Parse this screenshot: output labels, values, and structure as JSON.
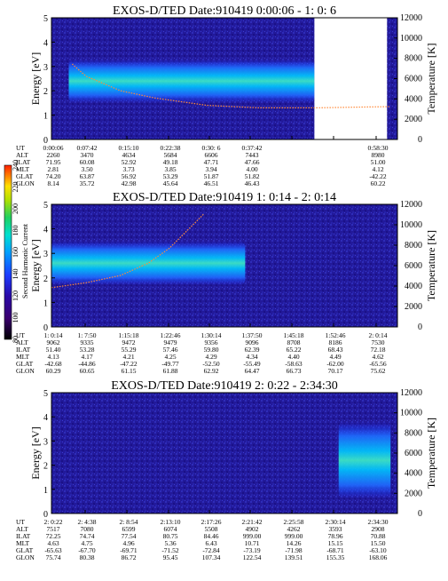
{
  "chart_data": [
    {
      "type": "heatmap",
      "title": "EXOS-D/TED   Date:910419  0:00:06 - 1: 0: 6",
      "ylabel": "Energy [eV]",
      "ylabel_right": "Temperature [K]",
      "ylim": [
        0,
        5
      ],
      "y_ticks": [
        "0",
        "1",
        "2",
        "3",
        "4",
        "5"
      ],
      "y2lim": [
        0,
        12000
      ],
      "y2_ticks": [
        "0",
        "2000",
        "4000",
        "6000",
        "8000",
        "10000",
        "12000"
      ],
      "band": {
        "center": 2.4,
        "width": 0.9,
        "start": 0.05,
        "end": 0.76
      },
      "gap": {
        "start": 0.76,
        "end": 0.97
      },
      "temperature_trace": [
        [
          0.06,
          3.1
        ],
        [
          0.1,
          2.6
        ],
        [
          0.15,
          2.3
        ],
        [
          0.2,
          2.0
        ],
        [
          0.3,
          1.7
        ],
        [
          0.45,
          1.4
        ],
        [
          0.6,
          1.3
        ],
        [
          0.76,
          1.3
        ],
        [
          0.98,
          1.35
        ]
      ],
      "labels": [
        "UT",
        "ALT",
        "ILAT",
        "MLT",
        "GLAT",
        "GLON"
      ],
      "columns": [
        [
          "0:00:06",
          "2260",
          "71.95",
          "2.81",
          "74.20",
          "8.14"
        ],
        [
          "0:07:42",
          "3470",
          "60.08",
          "3.50",
          "63.87",
          "35.72"
        ],
        [
          "0:15:10",
          "4634",
          "52.92",
          "3.73",
          "56.92",
          "42.98"
        ],
        [
          "0:22:38",
          "5684",
          "49.18",
          "3.85",
          "53.29",
          "45.64"
        ],
        [
          "0:30: 6",
          "6606",
          "47.71",
          "3.94",
          "51.87",
          "46.51"
        ],
        [
          "0:37:42",
          "7443",
          "47.66",
          "4.00",
          "51.82",
          "46.43"
        ],
        [
          "",
          "",
          "",
          "",
          "",
          ""
        ],
        [
          "",
          "",
          "",
          "",
          "",
          ""
        ],
        [
          "0:58:30",
          "8980",
          "51.00",
          "4.12",
          "-42.22",
          "60.22"
        ]
      ]
    },
    {
      "type": "heatmap",
      "title": "EXOS-D/TED   Date:910419  1: 0:14 - 2: 0:14",
      "ylabel": "Energy [eV]",
      "ylabel_right": "Temperature [K]",
      "ylim": [
        0,
        5
      ],
      "y_ticks": [
        "0",
        "1",
        "2",
        "3",
        "4",
        "5"
      ],
      "y2lim": [
        0,
        12000
      ],
      "y2_ticks": [
        "0",
        "2000",
        "4000",
        "6000",
        "8000",
        "10000",
        "12000"
      ],
      "band": {
        "center": 2.6,
        "width": 0.9,
        "start": 0.0,
        "end": 0.56
      },
      "temperature_trace": [
        [
          0.0,
          1.6
        ],
        [
          0.1,
          1.8
        ],
        [
          0.2,
          2.1
        ],
        [
          0.28,
          2.6
        ],
        [
          0.34,
          3.2
        ],
        [
          0.39,
          3.9
        ],
        [
          0.44,
          4.6
        ]
      ],
      "labels": [
        "UT",
        "ALT",
        "ILAT",
        "MLT",
        "GLAT",
        "GLON"
      ],
      "columns": [
        [
          "1: 0:14",
          "9062",
          "51.40",
          "4.13",
          "-42.68",
          "60.29"
        ],
        [
          "1: 7:50",
          "9335",
          "53.28",
          "4.17",
          "-44.86",
          "60.65"
        ],
        [
          "1:15:18",
          "9472",
          "55.29",
          "4.21",
          "-47.22",
          "61.15"
        ],
        [
          "1:22:46",
          "9479",
          "57.46",
          "4.25",
          "-49.77",
          "61.88"
        ],
        [
          "1:30:14",
          "9356",
          "59.80",
          "4.29",
          "-52.50",
          "62.92"
        ],
        [
          "1:37:50",
          "9096",
          "62.39",
          "4.34",
          "-55.49",
          "64.47"
        ],
        [
          "1:45:18",
          "8708",
          "65.22",
          "4.40",
          "-58.63",
          "66.73"
        ],
        [
          "1:52:46",
          "8186",
          "68.43",
          "4.49",
          "-62.00",
          "70.17"
        ],
        [
          "2: 0:14",
          "7530",
          "72.18",
          "4.62",
          "-65.56",
          "75.62"
        ]
      ]
    },
    {
      "type": "heatmap",
      "title": "EXOS-D/TED   Date:910419  2: 0:22 - 2:34:30",
      "ylabel": "Energy [eV]",
      "ylabel_right": "Temperature [K]",
      "ylim": [
        0,
        5
      ],
      "y_ticks": [
        "0",
        "1",
        "2",
        "3",
        "4",
        "5"
      ],
      "y2lim": [
        0,
        12000
      ],
      "y2_ticks": [
        "0",
        "2000",
        "4000",
        "6000",
        "8000",
        "10000",
        "12000"
      ],
      "band": {
        "center": 2.2,
        "width": 1.6,
        "start": 0.83,
        "end": 0.98
      },
      "temperature_trace": [],
      "labels": [
        "UT",
        "ALT",
        "ILAT",
        "MLT",
        "GLAT",
        "GLON"
      ],
      "columns": [
        [
          "2: 0:22",
          "7517",
          "72.25",
          "4.63",
          "-65.63",
          "75.74"
        ],
        [
          "2: 4:38",
          "7080",
          "74.74",
          "4.75",
          "-67.70",
          "80.38"
        ],
        [
          "2: 8:54",
          "6599",
          "77.54",
          "4.96",
          "-69.71",
          "86.72"
        ],
        [
          "2:13:10",
          "6074",
          "80.75",
          "5.36",
          "-71.52",
          "95.45"
        ],
        [
          "2:17:26",
          "5508",
          "84.46",
          "6.43",
          "-72.84",
          "107.34"
        ],
        [
          "2:21:42",
          "4902",
          "999.00",
          "10.71",
          "-73.19",
          "122.54"
        ],
        [
          "2:25:58",
          "4262",
          "999.00",
          "14.26",
          "-71.98",
          "139.51"
        ],
        [
          "2:30:14",
          "3593",
          "78.96",
          "15.15",
          "-68.71",
          "155.35"
        ],
        [
          "2:34:30",
          "2908",
          "70.88",
          "15.50",
          "-63.10",
          "168.06"
        ]
      ]
    }
  ],
  "colorbar": {
    "label": "Second Harmonic Current",
    "ticks": [
      "80",
      "100",
      "120",
      "140",
      "160",
      "180",
      "200",
      "220",
      "240"
    ],
    "colors": [
      "#000000",
      "#3a006e",
      "#2a0aa8",
      "#1c3cff",
      "#00a0ff",
      "#00e0d0",
      "#20d060",
      "#b0e000",
      "#ffe000",
      "#ff8000",
      "#ff2000"
    ]
  }
}
